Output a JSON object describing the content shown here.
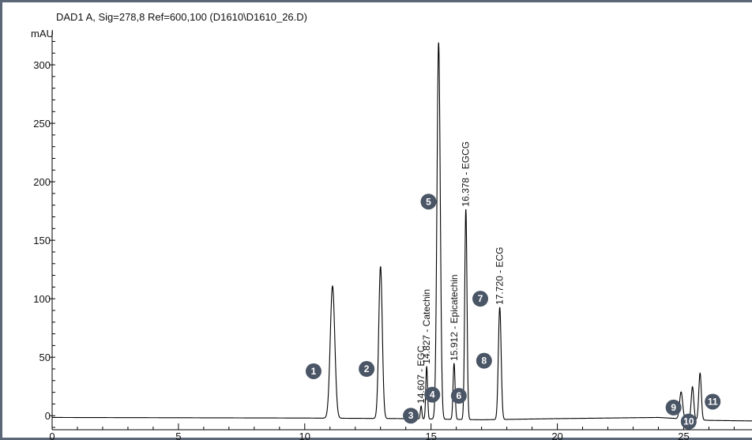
{
  "chart_data": {
    "type": "line",
    "title": "DAD1 A, Sig=278,8 Ref=600,100 (D1610\\D1610_26.D)",
    "ylabel": "mAU",
    "xlabel": "",
    "xlim": [
      0,
      27.8
    ],
    "ylim": [
      -12,
      323
    ],
    "x_ticks": [
      0,
      5,
      10,
      15,
      20,
      25
    ],
    "y_ticks": [
      0,
      50,
      100,
      150,
      200,
      250,
      300
    ],
    "line_color": "#000000",
    "marker_color": "#4a5566",
    "baseline": [
      [
        0,
        -1.5
      ],
      [
        10,
        -2
      ],
      [
        14,
        -2.5
      ],
      [
        17,
        -3.5
      ],
      [
        20,
        -2.5
      ],
      [
        24,
        -1.5
      ],
      [
        26,
        -4
      ],
      [
        27.8,
        -4.5
      ]
    ],
    "peaks": [
      {
        "t": 11.1,
        "height": 113,
        "width": 0.09
      },
      {
        "t": 13.0,
        "height": 130,
        "width": 0.07
      },
      {
        "t": 14.607,
        "height": 11,
        "width": 0.03
      },
      {
        "t": 14.827,
        "height": 45,
        "width": 0.035
      },
      {
        "t": 15.3,
        "height": 322,
        "width": 0.065
      },
      {
        "t": 15.912,
        "height": 48,
        "width": 0.04
      },
      {
        "t": 16.378,
        "height": 180,
        "width": 0.045
      },
      {
        "t": 17.72,
        "height": 96,
        "width": 0.055
      },
      {
        "t": 24.9,
        "height": 23,
        "width": 0.06
      },
      {
        "t": 25.35,
        "height": 28,
        "width": 0.05
      },
      {
        "t": 25.65,
        "height": 40,
        "width": 0.05
      }
    ],
    "peak_labels": [
      {
        "t": 14.607,
        "text": "14.607 - EGC"
      },
      {
        "t": 14.827,
        "text": "14.827 - Catechin"
      },
      {
        "t": 15.912,
        "text": "15.912 - Epicatechin"
      },
      {
        "t": 16.378,
        "text": "16.378 - EGCG"
      },
      {
        "t": 17.72,
        "text": "17.720 - ECG"
      }
    ],
    "markers": [
      {
        "label": "1",
        "t": 10.35,
        "y": 38
      },
      {
        "label": "2",
        "t": 12.45,
        "y": 40
      },
      {
        "label": "3",
        "t": 14.2,
        "y": 0
      },
      {
        "label": "4",
        "t": 15.05,
        "y": 18
      },
      {
        "label": "5",
        "t": 14.9,
        "y": 183
      },
      {
        "label": "6",
        "t": 16.1,
        "y": 17
      },
      {
        "label": "7",
        "t": 16.95,
        "y": 100
      },
      {
        "label": "8",
        "t": 17.1,
        "y": 47
      },
      {
        "label": "9",
        "t": 24.6,
        "y": 7
      },
      {
        "label": "10",
        "t": 25.2,
        "y": -5
      },
      {
        "label": "11",
        "t": 26.15,
        "y": 12
      }
    ]
  }
}
